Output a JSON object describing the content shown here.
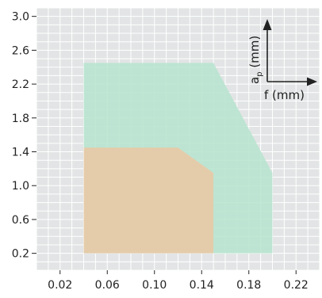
{
  "chart_data": {
    "type": "area",
    "x_ticks": [
      "0.02",
      "0.06",
      "0.10",
      "0.14",
      "0.18",
      "0.22"
    ],
    "y_ticks": [
      "0.2",
      "0.6",
      "1.0",
      "1.4",
      "1.8",
      "2.2",
      "2.6",
      "3.0"
    ],
    "xlim": [
      0.0,
      0.24
    ],
    "ylim": [
      0.0,
      3.1
    ],
    "grid": true,
    "legend": null,
    "inset_axes": {
      "x_label": "f (mm)",
      "y_label_main": "a",
      "y_label_sub": "p",
      "y_label_unit": " (mm)"
    },
    "regions": [
      {
        "color": "#b9e3cf",
        "points": [
          [
            0.04,
            0.2
          ],
          [
            0.04,
            2.45
          ],
          [
            0.15,
            2.45
          ],
          [
            0.2,
            1.15
          ],
          [
            0.2,
            0.2
          ]
        ]
      },
      {
        "color": "#e8c9a6",
        "points": [
          [
            0.04,
            0.2
          ],
          [
            0.04,
            1.45
          ],
          [
            0.12,
            1.45
          ],
          [
            0.15,
            1.15
          ],
          [
            0.15,
            0.2
          ]
        ]
      }
    ],
    "colors": {
      "background": "#e2e4e5",
      "grid": "#ffffff",
      "axis": "#222222"
    }
  }
}
